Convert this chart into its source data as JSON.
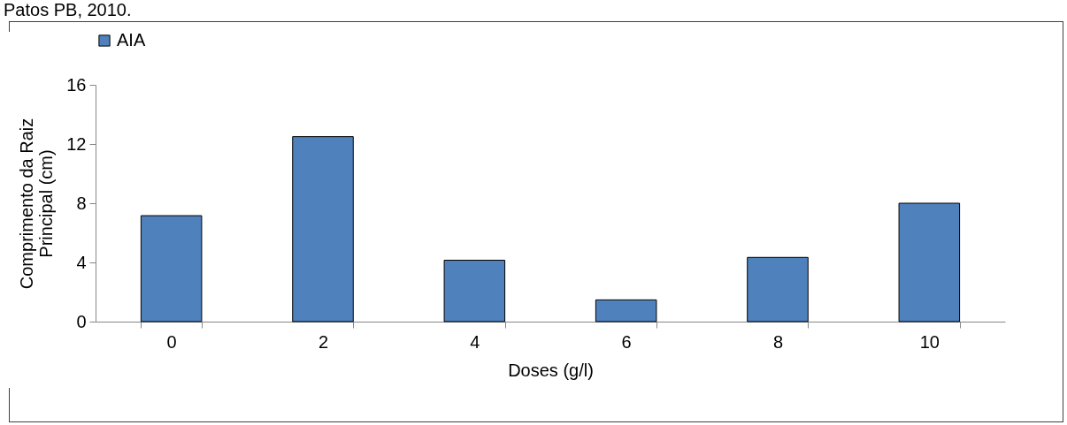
{
  "chart_data": {
    "type": "bar",
    "annotations": [
      "Patos PB, 2010."
    ],
    "categories": [
      "0",
      "2",
      "4",
      "6",
      "8",
      "10"
    ],
    "series": [
      {
        "name": "AIA",
        "color": "#4f81bd",
        "values": [
          7.16,
          12.5,
          4.15,
          1.47,
          4.34,
          8.0
        ]
      }
    ],
    "xlabel": "Doses (g/l)",
    "ylabel": "Comprimento da Raiz\nPrincipal (cm)",
    "ylim": [
      0,
      16
    ],
    "yticks": [
      0,
      4,
      8,
      12,
      16
    ],
    "grid": false,
    "legend": "top"
  }
}
